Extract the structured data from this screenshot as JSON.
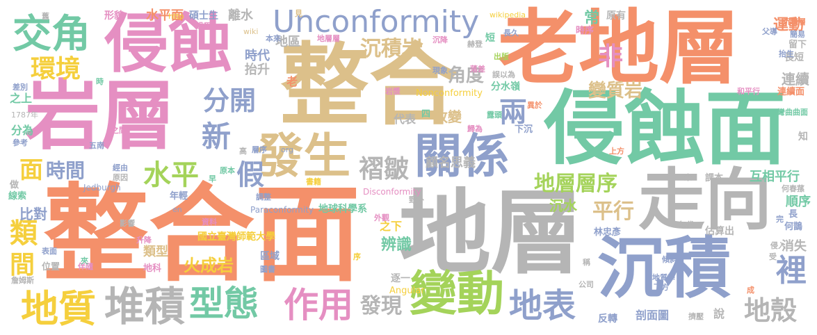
{
  "palette": {
    "orange": "#f4906a",
    "tan": "#dcc08a",
    "green": "#72c9a5",
    "blue": "#8fa0cb",
    "pink": "#e58fc2",
    "lime": "#a4d35a",
    "yellow": "#f5cf3d",
    "gray": "#b5b5b5"
  },
  "words": [
    {
      "text": "整合面",
      "color": "orange"
    },
    {
      "text": "整合",
      "color": "tan"
    },
    {
      "text": "老地層",
      "color": "orange"
    },
    {
      "text": "地層",
      "color": "gray"
    },
    {
      "text": "侵蝕面",
      "color": "green"
    },
    {
      "text": "岩層",
      "color": "pink"
    },
    {
      "text": "侵蝕",
      "color": "pink"
    },
    {
      "text": "走向",
      "color": "gray"
    },
    {
      "text": "沉積",
      "color": "blue"
    },
    {
      "text": "Unconformity",
      "color": "blue"
    },
    {
      "text": "發生",
      "color": "tan"
    },
    {
      "text": "關係",
      "color": "blue"
    },
    {
      "text": "交角",
      "color": "green"
    },
    {
      "text": "變動",
      "color": "lime"
    },
    {
      "text": "型態",
      "color": "green"
    },
    {
      "text": "堆積",
      "color": "gray"
    },
    {
      "text": "地質",
      "color": "yellow"
    },
    {
      "text": "作用",
      "color": "pink"
    },
    {
      "text": "地表",
      "color": "blue"
    },
    {
      "text": "環境",
      "color": "yellow"
    },
    {
      "text": "分開",
      "color": "blue"
    },
    {
      "text": "水平",
      "color": "lime"
    },
    {
      "text": "新",
      "color": "blue"
    },
    {
      "text": "面",
      "color": "yellow"
    },
    {
      "text": "時間",
      "color": "blue"
    },
    {
      "text": "裡",
      "color": "blue"
    },
    {
      "text": "地殼",
      "color": "gray"
    },
    {
      "text": "褶皺",
      "color": "gray"
    },
    {
      "text": "兩",
      "color": "blue"
    },
    {
      "text": "地層層序",
      "color": "lime"
    },
    {
      "text": "沉積岩",
      "color": "tan"
    },
    {
      "text": "平行",
      "color": "tan"
    },
    {
      "text": "火成岩",
      "color": "yellow"
    },
    {
      "text": "發現",
      "color": "gray"
    },
    {
      "text": "非",
      "color": "pink"
    },
    {
      "text": "變質岩",
      "color": "tan"
    },
    {
      "text": "角度",
      "color": "gray"
    },
    {
      "text": "假",
      "color": "blue"
    },
    {
      "text": "類",
      "color": "yellow"
    },
    {
      "text": "間",
      "color": "yellow"
    },
    {
      "text": "比對",
      "color": "blue"
    },
    {
      "text": "辨識",
      "color": "green"
    },
    {
      "text": "互相平行",
      "color": "green"
    },
    {
      "text": "顧名思義",
      "color": "gray"
    },
    {
      "text": "運動",
      "color": "orange"
    },
    {
      "text": "連續",
      "color": "gray"
    },
    {
      "text": "順序",
      "color": "green"
    },
    {
      "text": "沉水",
      "color": "lime"
    },
    {
      "text": "消失",
      "color": "gray"
    },
    {
      "text": "改變",
      "color": "tan"
    },
    {
      "text": "類型",
      "color": "tan"
    },
    {
      "text": "時代",
      "color": "blue"
    },
    {
      "text": "抬升",
      "color": "gray"
    },
    {
      "text": "代表",
      "color": "gray"
    },
    {
      "text": "剖面圖",
      "color": "blue"
    },
    {
      "text": "之下",
      "color": "yellow"
    },
    {
      "text": "常",
      "color": "green"
    },
    {
      "text": "離水",
      "color": "gray"
    },
    {
      "text": "水平面",
      "color": "orange"
    },
    {
      "text": "地區",
      "color": "gray"
    },
    {
      "text": "分為",
      "color": "green"
    },
    {
      "text": "之上",
      "color": "green"
    },
    {
      "text": "分水嶺",
      "color": "green"
    },
    {
      "text": "地球科學系",
      "color": "green"
    },
    {
      "text": "國立臺灣師範大學",
      "color": "yellow"
    },
    {
      "text": "估算出",
      "color": "gray"
    },
    {
      "text": "逐一",
      "color": "gray"
    },
    {
      "text": "區域",
      "color": "blue"
    },
    {
      "text": "Nonconformity",
      "color": "yellow"
    },
    {
      "text": "Paraconformity",
      "color": "blue"
    },
    {
      "text": "Disconformity",
      "color": "pink"
    },
    {
      "text": "Angular",
      "color": "yellow"
    },
    {
      "text": "碩士生",
      "color": "blue"
    },
    {
      "text": "形貌",
      "color": "pink"
    },
    {
      "text": "http",
      "color": "yellow"
    },
    {
      "text": "wikipedia",
      "color": "yellow"
    },
    {
      "text": "原有",
      "color": "gray"
    },
    {
      "text": "時序",
      "color": "pink"
    },
    {
      "text": "長久",
      "color": "blue"
    },
    {
      "text": "父導",
      "color": "blue"
    },
    {
      "text": "沉積層",
      "color": "orange"
    },
    {
      "text": "簡易",
      "color": "blue"
    },
    {
      "text": "留下",
      "color": "gray"
    },
    {
      "text": "長短",
      "color": "gray"
    },
    {
      "text": "連續面",
      "color": "orange"
    },
    {
      "text": "和平行",
      "color": "pink"
    },
    {
      "text": "彎曲曲面",
      "color": "green"
    },
    {
      "text": "誤以為",
      "color": "gray"
    },
    {
      "text": "岩漿",
      "color": "pink"
    },
    {
      "text": "現象",
      "color": "blue"
    },
    {
      "text": "層序",
      "color": "blue"
    },
    {
      "text": "下沉",
      "color": "blue"
    },
    {
      "text": "歸為",
      "color": "pink"
    },
    {
      "text": "上方",
      "color": "orange"
    },
    {
      "text": "課本",
      "color": "gray"
    },
    {
      "text": "知",
      "color": "gray"
    },
    {
      "text": "何春蓀",
      "color": "gray"
    },
    {
      "text": "完",
      "color": "blue"
    },
    {
      "text": "何鵲",
      "color": "blue"
    },
    {
      "text": "長",
      "color": "blue"
    },
    {
      "text": "年代",
      "color": "gray"
    },
    {
      "text": "林忠彥",
      "color": "blue"
    },
    {
      "text": "年輕",
      "color": "blue"
    },
    {
      "text": "Jedburgh",
      "color": "blue"
    },
    {
      "text": "資料",
      "color": "pink"
    },
    {
      "text": "調整",
      "color": "blue"
    },
    {
      "text": "外觀",
      "color": "pink"
    },
    {
      "text": "野外",
      "color": "gray"
    },
    {
      "text": "位置",
      "color": "gray"
    },
    {
      "text": "伴隨",
      "color": "pink"
    },
    {
      "text": "詹姆斯",
      "color": "gray"
    },
    {
      "text": "地科",
      "color": "pink"
    },
    {
      "text": "升降",
      "color": "pink"
    },
    {
      "text": "表面",
      "color": "blue"
    },
    {
      "text": "影響",
      "color": "gray"
    },
    {
      "text": "圖書",
      "color": "blue"
    },
    {
      "text": "傾斜",
      "color": "blue"
    },
    {
      "text": "侵入",
      "color": "gray"
    },
    {
      "text": "地質學",
      "color": "blue"
    },
    {
      "text": "下方",
      "color": "blue"
    },
    {
      "text": "公司",
      "color": "gray"
    },
    {
      "text": "反轉",
      "color": "blue"
    },
    {
      "text": "擠壓",
      "color": "gray"
    },
    {
      "text": "說",
      "color": "gray"
    },
    {
      "text": "成",
      "color": "orange"
    },
    {
      "text": "稱",
      "color": "gray"
    },
    {
      "text": "受",
      "color": "gray"
    },
    {
      "text": "序",
      "color": "yellow"
    },
    {
      "text": "夾",
      "color": "green"
    },
    {
      "text": "原本",
      "color": "green"
    },
    {
      "text": "高",
      "color": "gray"
    },
    {
      "text": "早",
      "color": "green"
    },
    {
      "text": "經由",
      "color": "blue"
    },
    {
      "text": "原因",
      "color": "gray"
    },
    {
      "text": "五南",
      "color": "blue"
    },
    {
      "text": "參考",
      "color": "blue"
    },
    {
      "text": "1787年",
      "color": "gray"
    },
    {
      "text": "差別",
      "color": "blue"
    },
    {
      "text": "時",
      "color": "green"
    },
    {
      "text": "線索",
      "color": "green"
    },
    {
      "text": "做",
      "color": "gray"
    },
    {
      "text": "舊",
      "color": "gray"
    },
    {
      "text": "過程",
      "color": "pink"
    },
    {
      "text": "wiki",
      "color": "tan"
    },
    {
      "text": "本來",
      "color": "blue"
    },
    {
      "text": "地層層",
      "color": "pink"
    },
    {
      "text": "沉降",
      "color": "pink"
    },
    {
      "text": "赫登",
      "color": "gray"
    },
    {
      "text": "出版",
      "color": "lime"
    },
    {
      "text": "短",
      "color": "green"
    },
    {
      "text": "落差",
      "color": "pink"
    },
    {
      "text": "異於",
      "color": "orange"
    },
    {
      "text": "露頭",
      "color": "green"
    },
    {
      "text": "四",
      "color": "green"
    },
    {
      "text": "見",
      "color": "tan"
    },
    {
      "text": "之間",
      "color": "pink"
    },
    {
      "text": "org",
      "color": "blue"
    },
    {
      "text": "en",
      "color": "blue"
    },
    {
      "text": "書籍",
      "color": "yellow"
    },
    {
      "text": "未",
      "color": "gray"
    },
    {
      "text": "抬生",
      "color": "blue"
    },
    {
      "text": "老",
      "color": "orange"
    }
  ]
}
